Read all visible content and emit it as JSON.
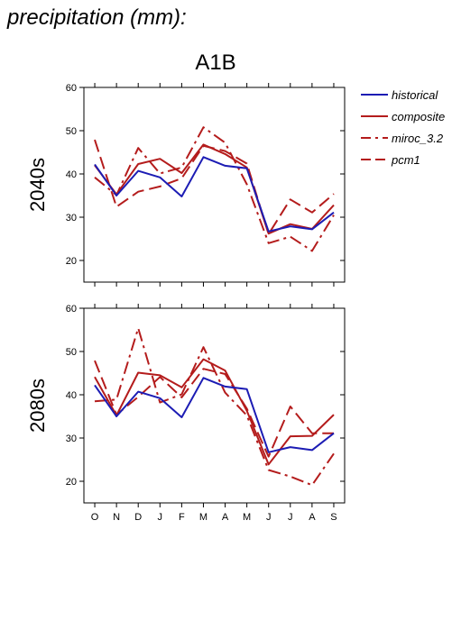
{
  "page_title": "precipitation (mm):",
  "chart_data": {
    "type": "line",
    "title": "A1B",
    "categories": [
      "O",
      "N",
      "D",
      "J",
      "F",
      "M",
      "A",
      "M",
      "J",
      "J",
      "A",
      "S"
    ],
    "ylim": [
      15,
      60
    ],
    "yticks": [
      20,
      30,
      40,
      50,
      60
    ],
    "grid": false,
    "legend_placement": "top-right, outside",
    "legend": [
      {
        "name": "historical",
        "color": "#1c1cb4",
        "style": "solid"
      },
      {
        "name": "composite",
        "color": "#b41c1c",
        "style": "solid"
      },
      {
        "name": "miroc_3.2",
        "color": "#b41c1c",
        "style": "dashdot"
      },
      {
        "name": "pcm1",
        "color": "#b41c1c",
        "style": "dashed"
      }
    ],
    "panels": [
      {
        "ylabel": "2040s",
        "series": [
          {
            "name": "historical",
            "values": [
              42.2,
              35.0,
              40.7,
              39.2,
              34.8,
              43.9,
              41.9,
              41.3,
              26.7,
              27.9,
              27.2,
              31.1
            ]
          },
          {
            "name": "composite",
            "values": [
              42.0,
              35.3,
              42.3,
              43.5,
              40.2,
              46.8,
              44.6,
              41.5,
              26.2,
              28.4,
              27.3,
              32.8
            ]
          },
          {
            "name": "miroc_3.2",
            "values": [
              39.2,
              35.1,
              46.0,
              40.1,
              41.5,
              50.8,
              47.2,
              37.6,
              24.0,
              25.5,
              22.2,
              30.5
            ]
          },
          {
            "name": "pcm1",
            "values": [
              47.9,
              32.4,
              35.9,
              37.1,
              39.0,
              46.5,
              45.3,
              42.4,
              26.1,
              34.1,
              31.1,
              35.4
            ]
          }
        ]
      },
      {
        "ylabel": "2080s",
        "series": [
          {
            "name": "historical",
            "values": [
              42.2,
              35.0,
              40.7,
              39.2,
              34.8,
              43.9,
              41.9,
              41.3,
              26.7,
              27.9,
              27.2,
              31.1
            ]
          },
          {
            "name": "composite",
            "values": [
              44.1,
              35.2,
              45.1,
              44.5,
              41.7,
              48.2,
              45.6,
              36.3,
              23.9,
              30.4,
              30.5,
              35.4
            ]
          },
          {
            "name": "miroc_3.2",
            "values": [
              38.5,
              38.9,
              55.4,
              38.2,
              40.1,
              51.0,
              40.5,
              35.2,
              22.6,
              21.1,
              19.1,
              26.4
            ]
          },
          {
            "name": "pcm1",
            "values": [
              47.9,
              35.4,
              39.5,
              44.1,
              39.4,
              46.0,
              44.8,
              36.8,
              25.7,
              37.3,
              31.1,
              31.1
            ]
          }
        ]
      }
    ]
  }
}
